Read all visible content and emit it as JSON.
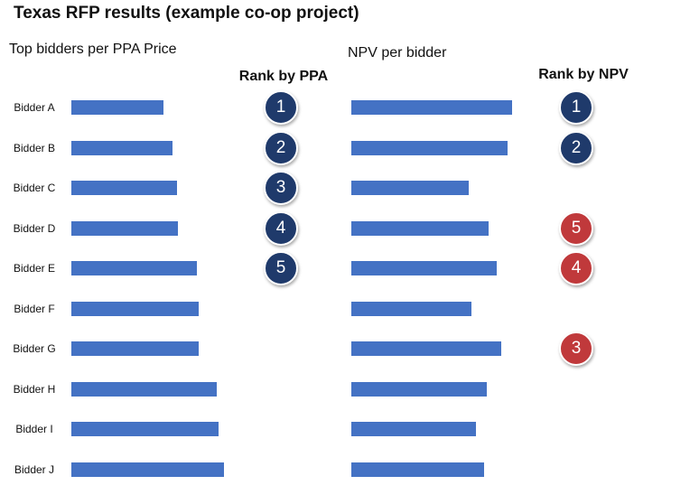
{
  "title": "Texas RFP results (example co-op project)",
  "left_panel": {
    "subtitle": "Top bidders per PPA Price",
    "rank_header": "Rank by PPA"
  },
  "right_panel": {
    "subtitle": "NPV per bidder",
    "rank_header": "Rank by NPV"
  },
  "colors": {
    "bar": "#4472c4",
    "rank_badge_blue": "#1f3a6b",
    "rank_badge_red": "#c0393b"
  },
  "chart_data": [
    {
      "type": "bar",
      "orientation": "horizontal",
      "title": "Top bidders per PPA Price",
      "categories": [
        "Bidder A",
        "Bidder B",
        "Bidder C",
        "Bidder D",
        "Bidder E",
        "Bidder F",
        "Bidder G",
        "Bidder H",
        "Bidder I",
        "Bidder J"
      ],
      "values": [
        102,
        112,
        117,
        118,
        139,
        141,
        141,
        161,
        163,
        169
      ],
      "value_unit": "relative (no axis shown)",
      "ranks": [
        1,
        2,
        3,
        4,
        5,
        null,
        null,
        null,
        null,
        null
      ],
      "rank_colors": [
        "blue",
        "blue",
        "blue",
        "blue",
        "blue",
        null,
        null,
        null,
        null,
        null
      ]
    },
    {
      "type": "bar",
      "orientation": "horizontal",
      "title": "NPV per bidder",
      "categories": [
        "Bidder A",
        "Bidder B",
        "Bidder C",
        "Bidder D",
        "Bidder E",
        "Bidder F",
        "Bidder G",
        "Bidder H",
        "Bidder I",
        "Bidder J"
      ],
      "values": [
        178,
        173,
        130,
        152,
        161,
        133,
        166,
        150,
        138,
        147
      ],
      "value_unit": "relative (no axis shown)",
      "ranks": [
        1,
        2,
        null,
        5,
        4,
        null,
        3,
        null,
        null,
        null
      ],
      "rank_colors": [
        "blue",
        "blue",
        null,
        "red",
        "red",
        null,
        "red",
        null,
        null,
        null
      ]
    }
  ]
}
